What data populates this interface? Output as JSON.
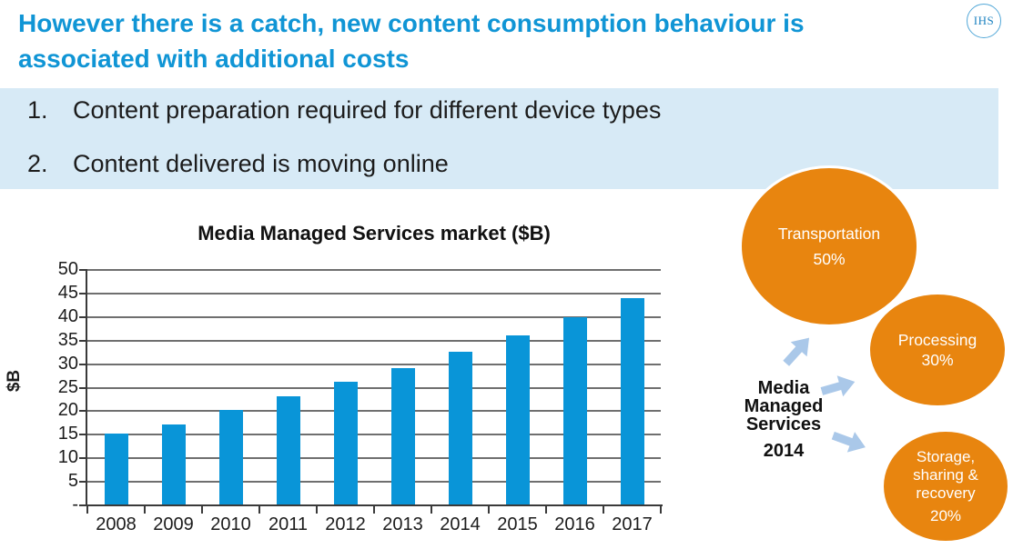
{
  "slide": {
    "title_line1": "However there is a catch, new content consumption behaviour is",
    "title_line2": "associated with additional costs",
    "logo_text": "IHS",
    "points": [
      {
        "number": "1.",
        "text": "Content preparation required for different device types"
      },
      {
        "number": "2.",
        "text": "Content delivered is moving online"
      }
    ]
  },
  "chart_data": {
    "type": "bar",
    "title": "Media Managed Services market ($B)",
    "ylabel": "$B",
    "categories": [
      "2008",
      "2009",
      "2010",
      "2011",
      "2012",
      "2013",
      "2014",
      "2015",
      "2016",
      "2017"
    ],
    "values": [
      15,
      17,
      20,
      23,
      26,
      29,
      32.5,
      36,
      39.8,
      43.8
    ],
    "ylim": [
      0,
      50
    ],
    "ytick_interval": 5,
    "ytick_labels": [
      "50",
      "45",
      "40",
      "35",
      "30",
      "25",
      "20",
      "15",
      "10",
      "5",
      "-"
    ],
    "grid": true,
    "legend": "none",
    "bar_color": "#0995d8"
  },
  "diagram": {
    "center_label": {
      "lines": "Media Managed Services",
      "year": "2014"
    },
    "bubbles": [
      {
        "label": "Transportation",
        "pct": "50%",
        "share": 50
      },
      {
        "label": "Processing",
        "pct": "30%",
        "share": 30
      },
      {
        "label_line1": "Storage,",
        "label_line2": "sharing &",
        "label_line3": "recovery",
        "pct": "20%",
        "share": 20
      }
    ],
    "bubble_color": "#e8850f",
    "arrow_color": "#aac8e9"
  },
  "colors": {
    "title_blue": "#1095d5",
    "band_blue": "#d7eaf6",
    "bar_blue": "#0995d8",
    "orange": "#e8850f",
    "arrow_blue": "#aac8e9"
  }
}
